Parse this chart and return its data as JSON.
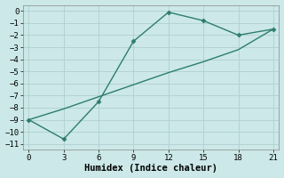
{
  "line1_x": [
    0,
    3,
    6,
    9,
    12,
    15,
    18,
    21
  ],
  "line1_y": [
    -9.0,
    -10.6,
    -7.5,
    -2.5,
    -0.1,
    -0.8,
    -2.0,
    -1.5
  ],
  "line2_x": [
    0,
    3,
    6,
    9,
    12,
    15,
    18,
    21
  ],
  "line2_y": [
    -9.0,
    -8.1,
    -7.1,
    -6.1,
    -5.1,
    -4.2,
    -3.2,
    -1.5
  ],
  "line_color": "#2d7d6e",
  "marker": "D",
  "marker_size": 2.5,
  "linewidth": 1.0,
  "xlim": [
    -0.5,
    21.5
  ],
  "ylim": [
    -11.5,
    0.5
  ],
  "xticks": [
    0,
    3,
    6,
    9,
    12,
    15,
    18,
    21
  ],
  "yticks": [
    0,
    -1,
    -2,
    -3,
    -4,
    -5,
    -6,
    -7,
    -8,
    -9,
    -10,
    -11
  ],
  "xlabel": "Humidex (Indice chaleur)",
  "background_color": "#cce8e8",
  "grid_color": "#b0d0d0",
  "tick_fontsize": 6.5,
  "xlabel_fontsize": 7.5
}
